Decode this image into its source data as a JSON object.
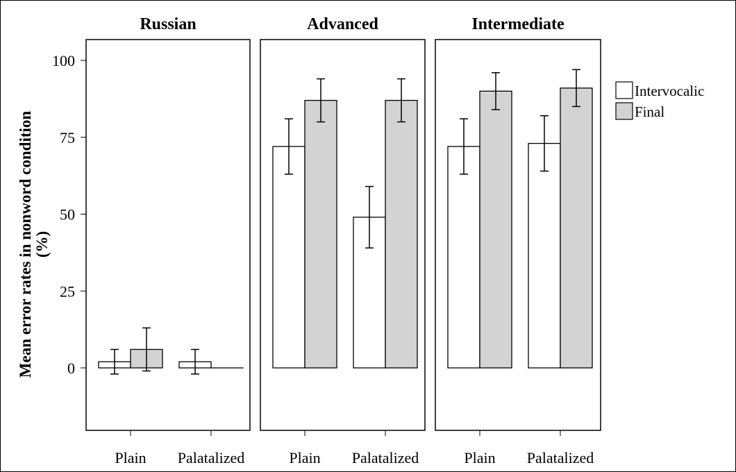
{
  "chart_data": {
    "type": "bar",
    "ylabel": "Mean error rates in nonword condition (%)",
    "ylim": [
      -20,
      100
    ],
    "yticks": [
      "0",
      "25",
      "50",
      "75",
      "100"
    ],
    "categories": [
      "Plain",
      "Palatalized"
    ],
    "legend": {
      "placement": "right",
      "entries": [
        {
          "name": "Intervocalic",
          "color": "#ffffff"
        },
        {
          "name": "Final",
          "color": "#d3d3d3"
        }
      ]
    },
    "panels": [
      {
        "title": "Russian",
        "series": [
          {
            "name": "Intervocalic",
            "values": [
              2,
              2
            ],
            "err_low": [
              -2,
              -2
            ],
            "err_high": [
              6,
              6
            ]
          },
          {
            "name": "Final",
            "values": [
              6,
              0
            ],
            "err_low": [
              -1,
              0
            ],
            "err_high": [
              13,
              0
            ]
          }
        ]
      },
      {
        "title": "Advanced",
        "series": [
          {
            "name": "Intervocalic",
            "values": [
              72,
              49
            ],
            "err_low": [
              63,
              39
            ],
            "err_high": [
              81,
              59
            ]
          },
          {
            "name": "Final",
            "values": [
              87,
              87
            ],
            "err_low": [
              80,
              80
            ],
            "err_high": [
              94,
              94
            ]
          }
        ]
      },
      {
        "title": "Intermediate",
        "series": [
          {
            "name": "Intervocalic",
            "values": [
              72,
              73
            ],
            "err_low": [
              63,
              64
            ],
            "err_high": [
              81,
              82
            ]
          },
          {
            "name": "Final",
            "values": [
              90,
              91
            ],
            "err_low": [
              84,
              85
            ],
            "err_high": [
              96,
              97
            ]
          }
        ]
      }
    ]
  }
}
